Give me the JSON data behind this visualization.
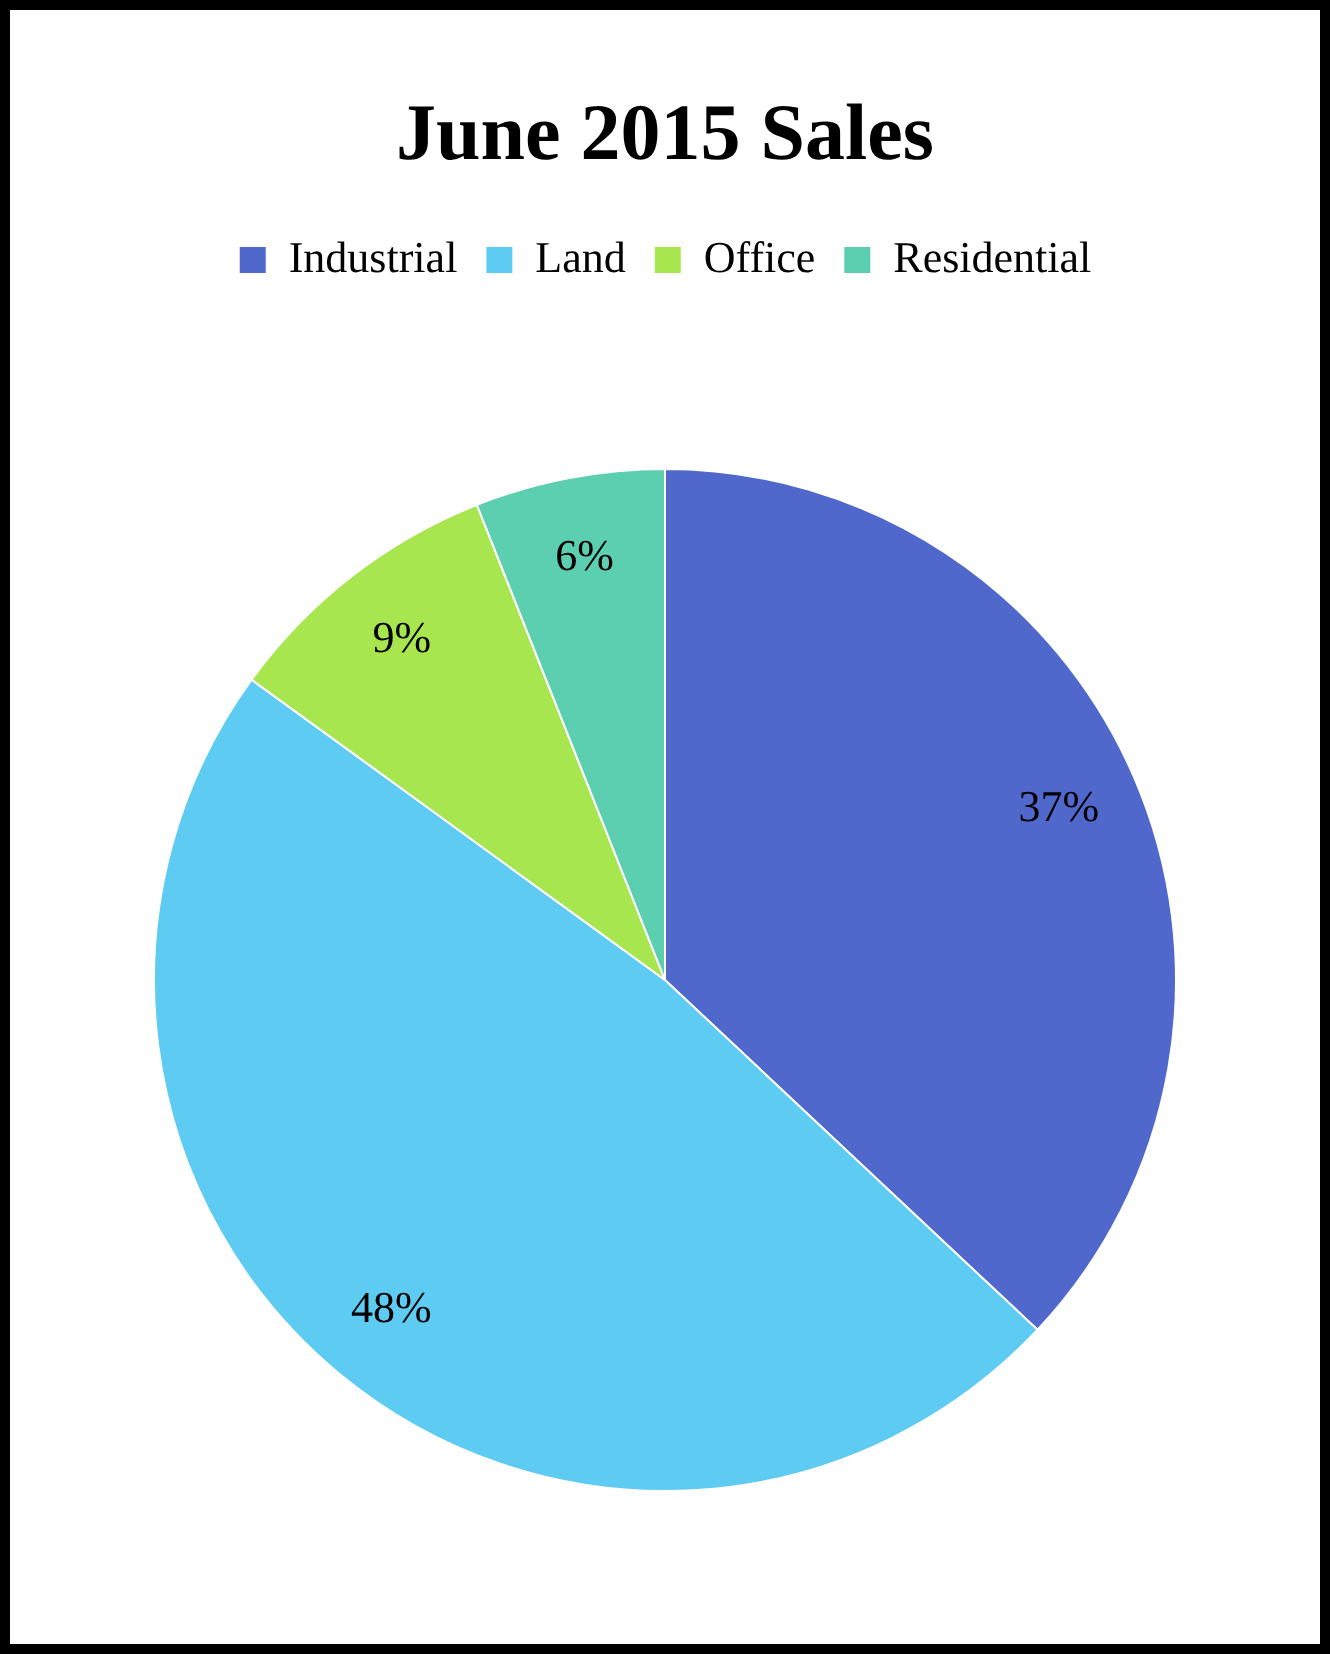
{
  "chart_data": {
    "type": "pie",
    "title": "June 2015 Sales",
    "categories": [
      "Industrial",
      "Land",
      "Office",
      "Residential"
    ],
    "values": [
      37,
      48,
      9,
      6
    ],
    "colors": [
      "#5068cc",
      "#5ecbf2",
      "#a8e650",
      "#5ccfb0"
    ],
    "value_labels": [
      "37%",
      "48%",
      "9%",
      "6%"
    ],
    "legend": "top"
  }
}
